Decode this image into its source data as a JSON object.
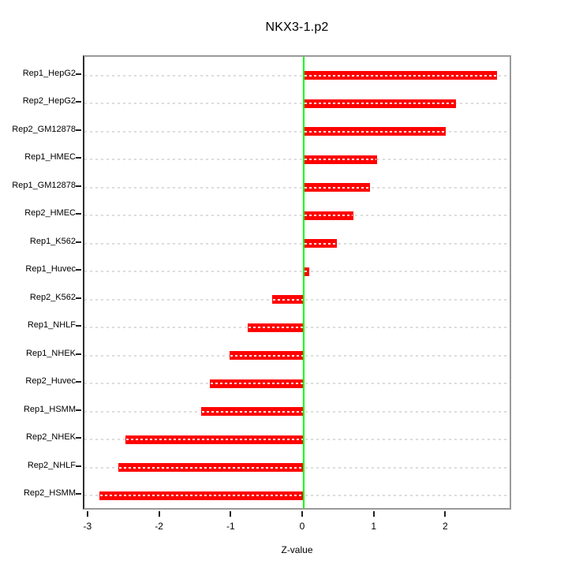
{
  "title": "NKX3-1.p2",
  "chart_data": {
    "type": "bar",
    "orientation": "horizontal",
    "title": "NKX3-1.p2",
    "xlabel": "Z-value",
    "ylabel": "",
    "categories": [
      "Rep1_HepG2",
      "Rep2_HepG2",
      "Rep2_GM12878",
      "Rep1_HMEC",
      "Rep1_GM12878",
      "Rep2_HMEC",
      "Rep1_K562",
      "Rep1_Huvec",
      "Rep2_K562",
      "Rep1_NHLF",
      "Rep1_NHEK",
      "Rep2_Huvec",
      "Rep1_HSMM",
      "Rep2_NHEK",
      "Rep2_NHLF",
      "Rep2_HSMM"
    ],
    "values": [
      2.7,
      2.13,
      1.98,
      1.02,
      0.93,
      0.69,
      0.46,
      0.08,
      -0.44,
      -0.78,
      -1.04,
      -1.31,
      -1.43,
      -2.49,
      -2.59,
      -2.86
    ],
    "x_ticks": [
      -3,
      -2,
      -1,
      0,
      1,
      2
    ],
    "xlim": [
      -3.07,
      2.92
    ],
    "grid": true,
    "legend": "none",
    "bar_color": "#ff0000",
    "bar_stripe_color": "#ffffff",
    "zero_line_color": "#00ff00",
    "grid_color": "#dcdcdc",
    "box_color": "#9a9a9a",
    "axis_color": "#222222"
  }
}
